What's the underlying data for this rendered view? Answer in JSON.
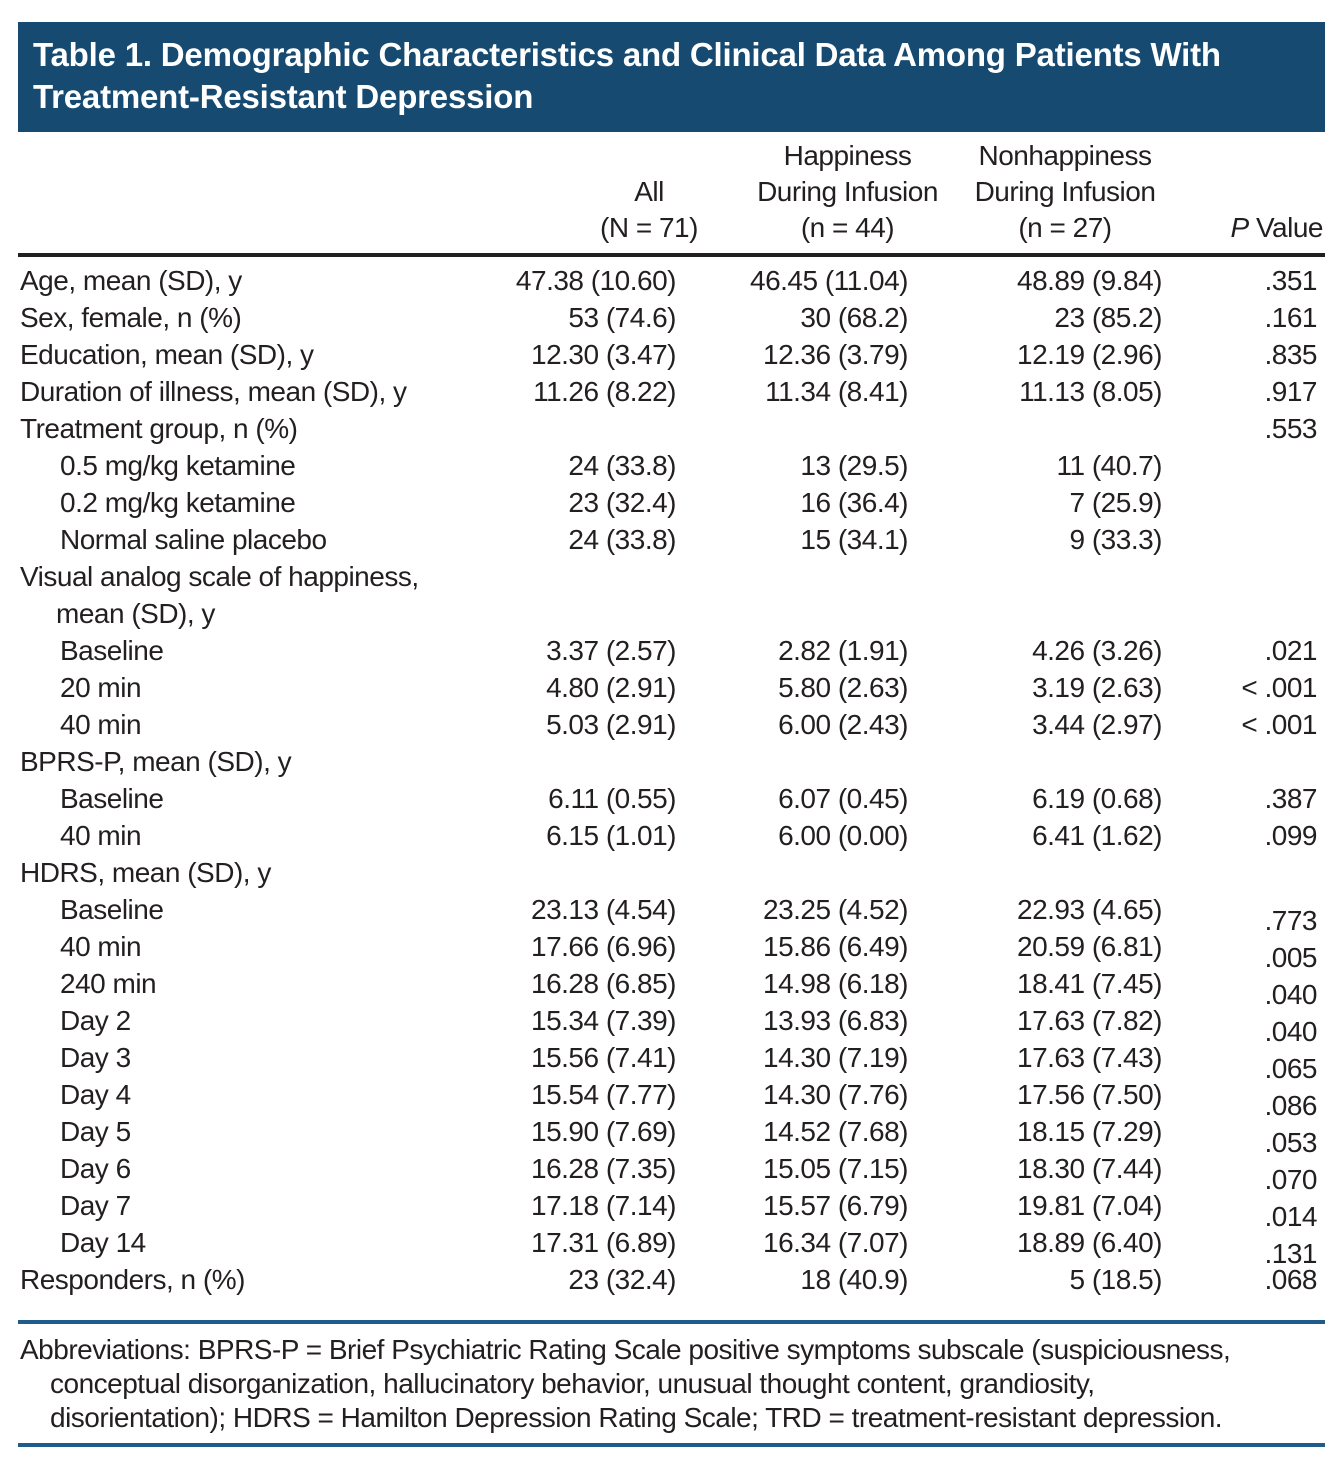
{
  "colors": {
    "title_bg": "#174A70",
    "title_text": "#FFFFFF",
    "body_text": "#231F20",
    "blue_rule": "#1F5C8E",
    "black_rule": "#231F20",
    "page_bg": "#FFFFFF"
  },
  "title": {
    "line1": "Table 1. Demographic Characteristics and Clinical Data Among Patients With",
    "line2": "Treatment-Resistant Depression"
  },
  "header": {
    "col_label": "",
    "col_all": {
      "line1": "All",
      "line2": "(N = 71)"
    },
    "col_happiness": {
      "line1": "Happiness",
      "line2": "During Infusion",
      "line3": "(n = 44)"
    },
    "col_nonhappiness": {
      "line1": "Nonhappiness",
      "line2": "During Infusion",
      "line3": "(n = 27)"
    },
    "col_pvalue": {
      "italic_part": "P",
      "rest": " Value"
    }
  },
  "rows": [
    {
      "label": "Age, mean (SD), y",
      "indent": 0,
      "all": "47.38 (10.60)",
      "happiness": "46.45 (11.04)",
      "nonhappiness": "48.89 (9.84)",
      "p": ".351"
    },
    {
      "label": "Sex, female, n (%)",
      "indent": 0,
      "all": "53 (74.6)",
      "happiness": "30 (68.2)",
      "nonhappiness": "23 (85.2)",
      "p": ".161"
    },
    {
      "label": "Education, mean (SD), y",
      "indent": 0,
      "all": "12.30 (3.47)",
      "happiness": "12.36 (3.79)",
      "nonhappiness": "12.19 (2.96)",
      "p": ".835"
    },
    {
      "label": "Duration of illness, mean (SD), y",
      "indent": 0,
      "all": "11.26 (8.22)",
      "happiness": "11.34 (8.41)",
      "nonhappiness": "11.13 (8.05)",
      "p": ".917"
    },
    {
      "label": "Treatment group, n (%)",
      "indent": 0,
      "all": "",
      "happiness": "",
      "nonhappiness": "",
      "p": ".553"
    },
    {
      "label": "0.5 mg/kg ketamine",
      "indent": 1,
      "all": "24 (33.8)",
      "happiness": "13 (29.5)",
      "nonhappiness": "11 (40.7)",
      "p": ""
    },
    {
      "label": "0.2 mg/kg ketamine",
      "indent": 1,
      "all": "23 (32.4)",
      "happiness": "16 (36.4)",
      "nonhappiness": "7 (25.9)",
      "p": ""
    },
    {
      "label": "Normal saline placebo",
      "indent": 1,
      "all": "24 (33.8)",
      "happiness": "15 (34.1)",
      "nonhappiness": "9 (33.3)",
      "p": ""
    },
    {
      "label": "Visual analog scale of happiness,",
      "label2": "mean (SD), y",
      "indent": 0,
      "all": "",
      "happiness": "",
      "nonhappiness": "",
      "p": ""
    },
    {
      "label": "Baseline",
      "indent": 1,
      "all": "3.37 (2.57)",
      "happiness": "2.82 (1.91)",
      "nonhappiness": "4.26 (3.26)",
      "p": ".021"
    },
    {
      "label": "20 min",
      "indent": 1,
      "all": "4.80 (2.91)",
      "happiness": "5.80 (2.63)",
      "nonhappiness": "3.19 (2.63)",
      "p": "< .001"
    },
    {
      "label": "40 min",
      "indent": 1,
      "all": "5.03 (2.91)",
      "happiness": "6.00 (2.43)",
      "nonhappiness": "3.44 (2.97)",
      "p": "< .001"
    },
    {
      "label": "BPRS-P, mean (SD), y",
      "indent": 0,
      "all": "",
      "happiness": "",
      "nonhappiness": "",
      "p": ""
    },
    {
      "label": "Baseline",
      "indent": 1,
      "all": "6.11 (0.55)",
      "happiness": "6.07 (0.45)",
      "nonhappiness": "6.19 (0.68)",
      "p": ".387"
    },
    {
      "label": "40 min",
      "indent": 1,
      "all": "6.15 (1.01)",
      "happiness": "6.00 (0.00)",
      "nonhappiness": "6.41 (1.62)",
      "p": ".099"
    },
    {
      "label": "HDRS, mean (SD), y",
      "indent": 0,
      "all": "",
      "happiness": "",
      "nonhappiness": "",
      "p": ""
    },
    {
      "label": "Baseline",
      "indent": 1,
      "all": "23.13 (4.54)",
      "happiness": "23.25 (4.52)",
      "nonhappiness": "22.93 (4.65)",
      "p": ".773",
      "p_shift": true
    },
    {
      "label": "40 min",
      "indent": 1,
      "all": "17.66 (6.96)",
      "happiness": "15.86 (6.49)",
      "nonhappiness": "20.59 (6.81)",
      "p": ".005",
      "p_shift": true
    },
    {
      "label": "240 min",
      "indent": 1,
      "all": "16.28 (6.85)",
      "happiness": "14.98 (6.18)",
      "nonhappiness": "18.41 (7.45)",
      "p": ".040",
      "p_shift": true
    },
    {
      "label": "Day 2",
      "indent": 1,
      "all": "15.34 (7.39)",
      "happiness": "13.93 (6.83)",
      "nonhappiness": "17.63 (7.82)",
      "p": ".040",
      "p_shift": true
    },
    {
      "label": "Day 3",
      "indent": 1,
      "all": "15.56 (7.41)",
      "happiness": "14.30 (7.19)",
      "nonhappiness": "17.63 (7.43)",
      "p": ".065",
      "p_shift": true
    },
    {
      "label": "Day 4",
      "indent": 1,
      "all": "15.54 (7.77)",
      "happiness": "14.30 (7.76)",
      "nonhappiness": "17.56 (7.50)",
      "p": ".086",
      "p_shift": true
    },
    {
      "label": "Day 5",
      "indent": 1,
      "all": "15.90 (7.69)",
      "happiness": "14.52 (7.68)",
      "nonhappiness": "18.15 (7.29)",
      "p": ".053",
      "p_shift": true
    },
    {
      "label": "Day 6",
      "indent": 1,
      "all": "16.28 (7.35)",
      "happiness": "15.05 (7.15)",
      "nonhappiness": "18.30 (7.44)",
      "p": ".070",
      "p_shift": true
    },
    {
      "label": "Day 7",
      "indent": 1,
      "all": "17.18 (7.14)",
      "happiness": "15.57 (6.79)",
      "nonhappiness": "19.81 (7.04)",
      "p": ".014",
      "p_shift": true
    },
    {
      "label": "Day 14",
      "indent": 1,
      "all": "17.31 (6.89)",
      "happiness": "16.34 (7.07)",
      "nonhappiness": "18.89 (6.40)",
      "p": ".131",
      "p_shift": true
    },
    {
      "label": "Responders, n (%)",
      "indent": 0,
      "all": "23 (32.4)",
      "happiness": "18 (40.9)",
      "nonhappiness": "5 (18.5)",
      "p": ".068"
    }
  ],
  "footnote": {
    "line1": "Abbreviations: BPRS-P = Brief Psychiatric Rating Scale positive symptoms subscale (suspiciousness,",
    "line2": "conceptual disorganization, hallucinatory behavior, unusual thought content, grandiosity,",
    "line3": "disorientation); HDRS = Hamilton Depression Rating Scale; TRD = treatment-resistant depression."
  }
}
